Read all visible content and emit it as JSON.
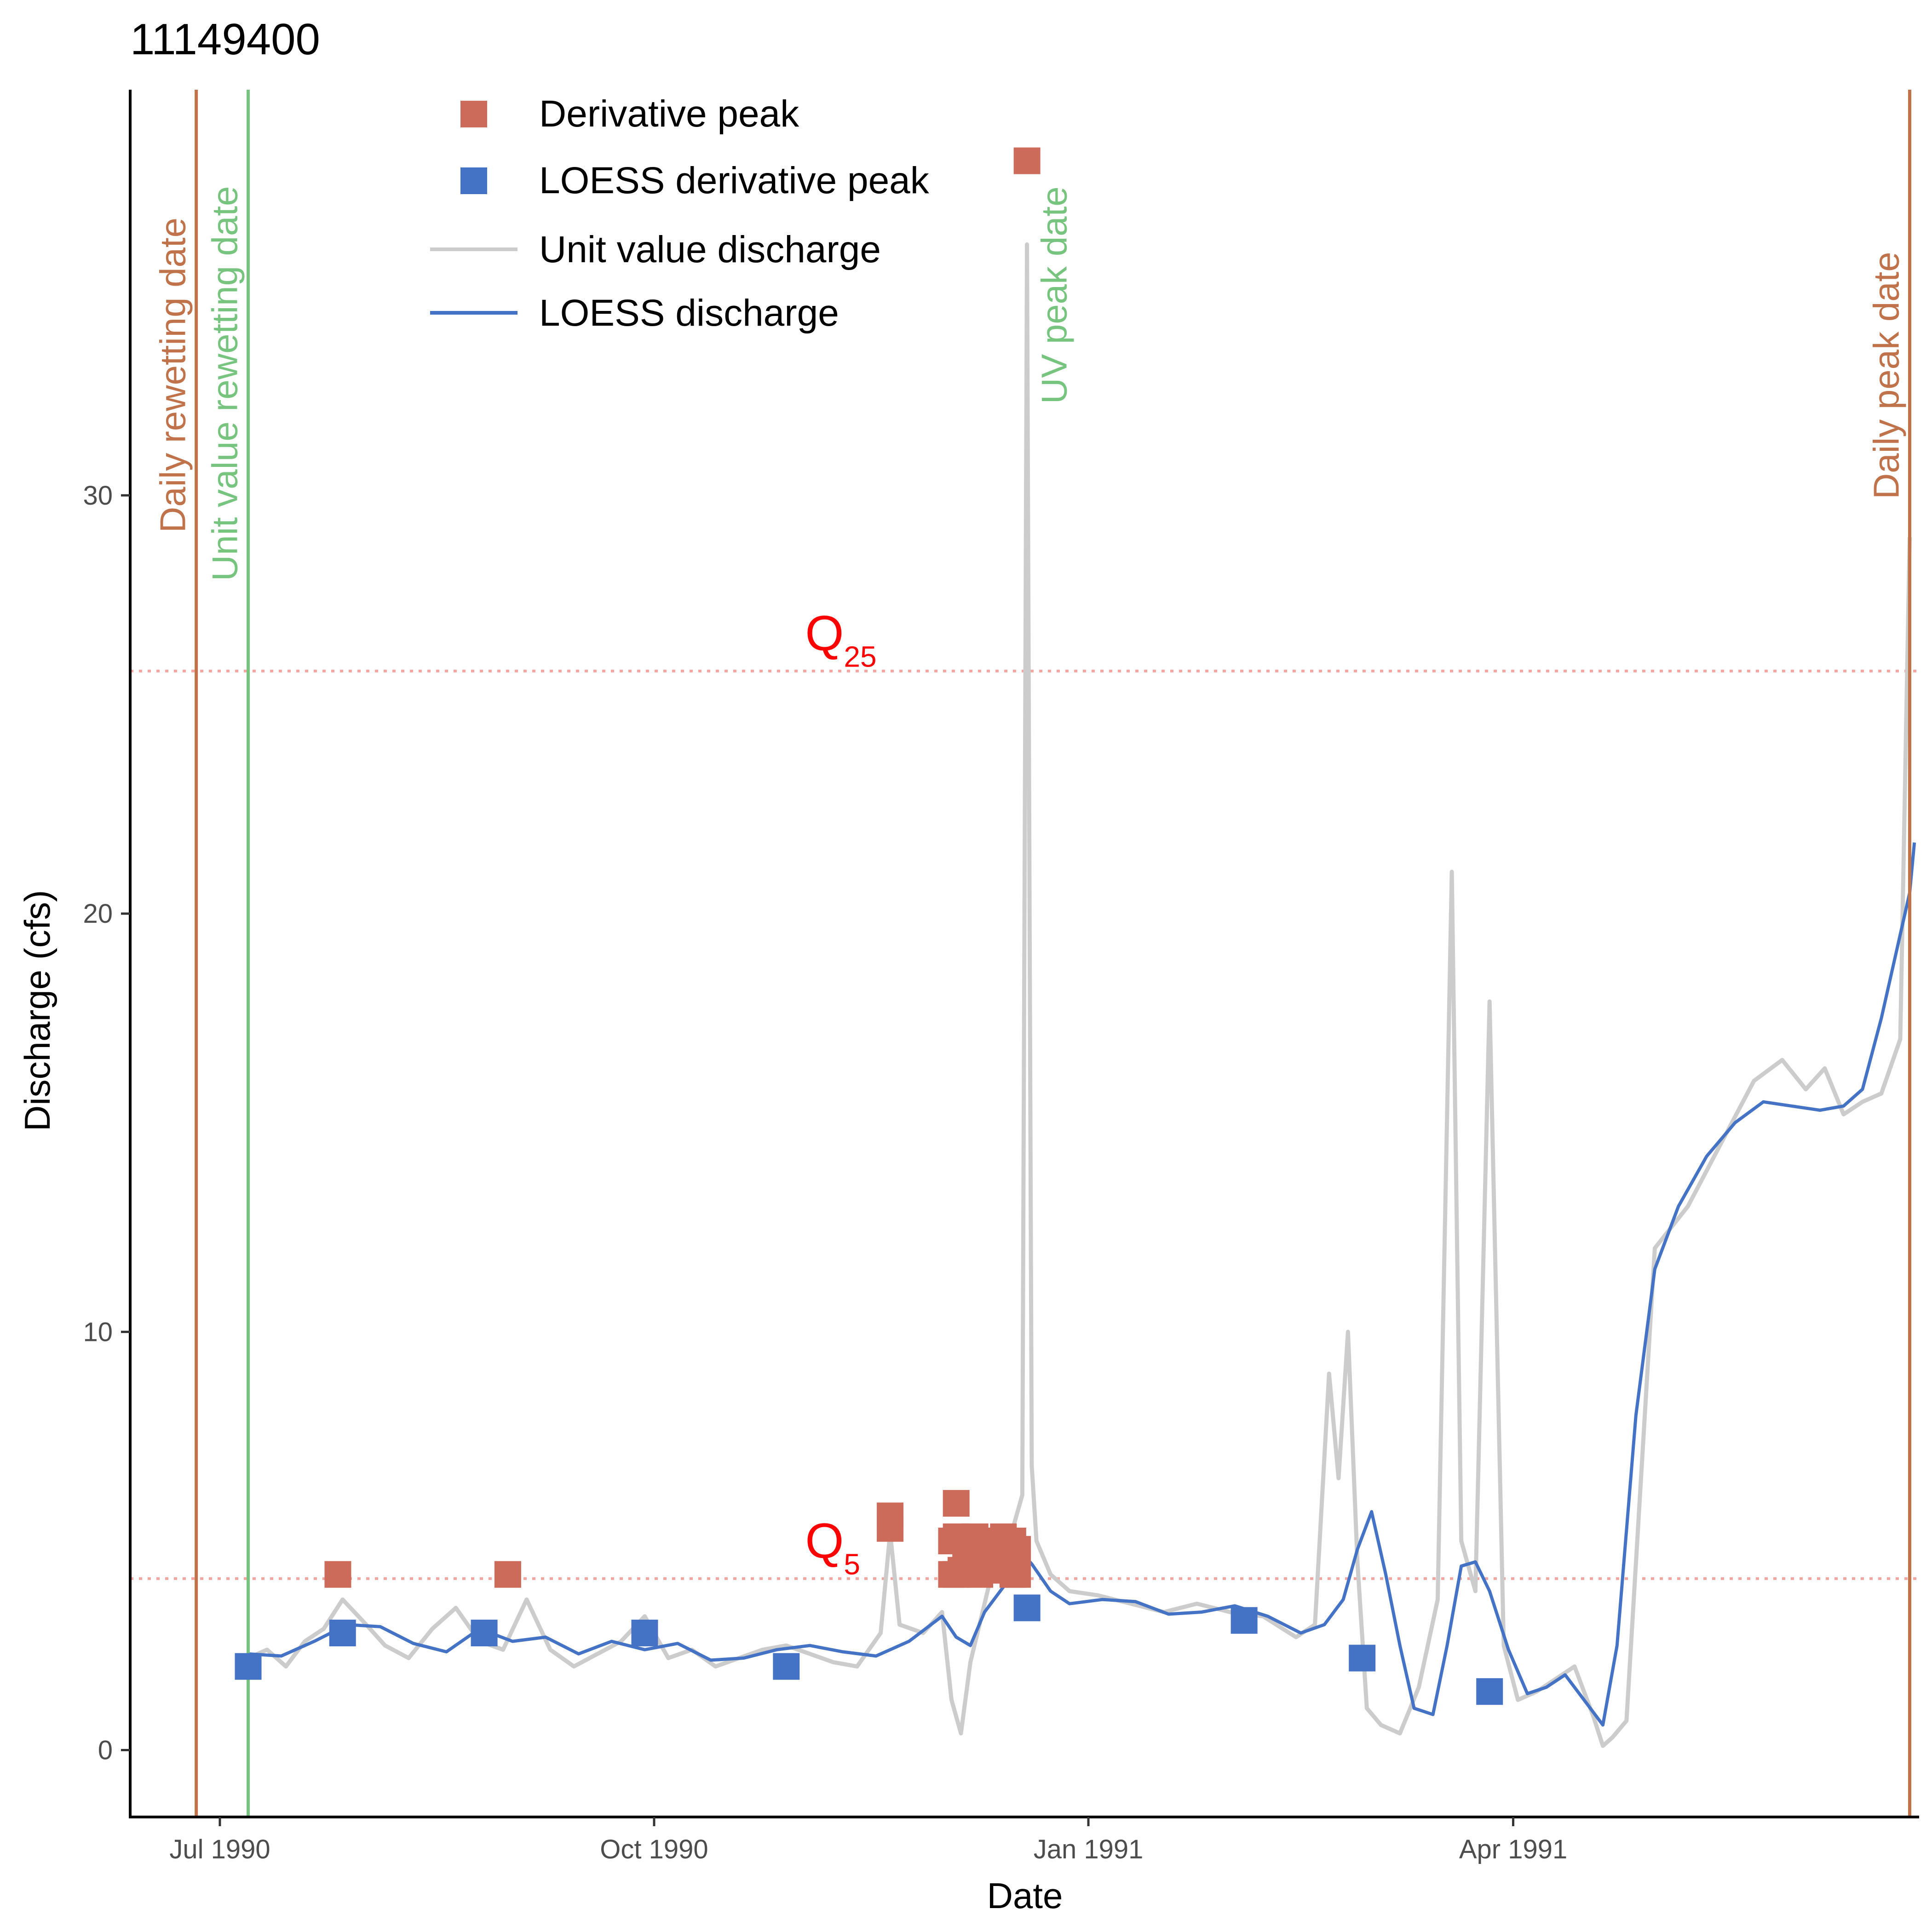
{
  "chart_data": {
    "type": "line",
    "title": "11149400",
    "xlabel": "Date",
    "ylabel": "Discharge (cfs)",
    "xlim": [
      "1990-06-12",
      "1991-06-26"
    ],
    "ylim": [
      -1.6,
      39.7
    ],
    "x_ticks": [
      {
        "date": "1990-07-01",
        "label": "Jul 1990"
      },
      {
        "date": "1990-10-01",
        "label": "Oct 1990"
      },
      {
        "date": "1991-01-01",
        "label": "Jan 1991"
      },
      {
        "date": "1991-04-01",
        "label": "Apr 1991"
      }
    ],
    "y_ticks": [
      0,
      10,
      20,
      30
    ],
    "grid": false,
    "legend": {
      "position": "top-left",
      "items": [
        {
          "label": "Derivative peak",
          "type": "square",
          "color": "#CD6B5A"
        },
        {
          "label": "LOESS derivative peak",
          "type": "square",
          "color": "#4472C4"
        },
        {
          "label": "Unit value discharge",
          "type": "line",
          "color": "#CCCCCC"
        },
        {
          "label": "LOESS discharge",
          "type": "line",
          "color": "#4472C4"
        }
      ]
    },
    "reference_lines": [
      {
        "name": "Q",
        "sub": "25",
        "y": 25.8,
        "label_x": "1990-11-02",
        "label_y": 26.3,
        "color": "#F4A7A1"
      },
      {
        "name": "Q",
        "sub": "5",
        "y": 4.1,
        "label_x": "1990-11-02",
        "label_y": 4.6,
        "color": "#F4A7A1"
      }
    ],
    "vertical_lines": [
      {
        "label": "Daily rewetting date",
        "date": "1990-06-26",
        "color": "#C0734A"
      },
      {
        "label": "Unit value rewetting date",
        "date": "1990-07-07",
        "color": "#77C47F"
      },
      {
        "label": "UV peak date",
        "date": "1990-12-19",
        "color": "#77C47F",
        "line": false
      },
      {
        "label": "Daily peak date",
        "date": "1991-06-24",
        "color": "#C0734A"
      }
    ],
    "series": [
      {
        "name": "Unit value discharge",
        "color": "#CCCCCC",
        "x": [
          "1990-07-07",
          "1990-07-11",
          "1990-07-15",
          "1990-07-19",
          "1990-07-23",
          "1990-07-27",
          "1990-08-01",
          "1990-08-05",
          "1990-08-10",
          "1990-08-15",
          "1990-08-20",
          "1990-08-25",
          "1990-08-30",
          "1990-09-04",
          "1990-09-09",
          "1990-09-14",
          "1990-09-19",
          "1990-09-24",
          "1990-09-29",
          "1990-10-04",
          "1990-10-09",
          "1990-10-14",
          "1990-10-19",
          "1990-10-24",
          "1990-10-29",
          "1990-11-03",
          "1990-11-08",
          "1990-11-13",
          "1990-11-18",
          "1990-11-20",
          "1990-11-22",
          "1990-11-27",
          "1990-12-01",
          "1990-12-03",
          "1990-12-05",
          "1990-12-07",
          "1990-12-10",
          "1990-12-13",
          "1990-12-16",
          "1990-12-18",
          "1990-12-19",
          "1990-12-20",
          "1990-12-21",
          "1990-12-24",
          "1990-12-28",
          "1991-01-03",
          "1991-01-10",
          "1991-01-17",
          "1991-01-24",
          "1991-01-31",
          "1991-02-07",
          "1991-02-14",
          "1991-02-18",
          "1991-02-21",
          "1991-02-23",
          "1991-02-25",
          "1991-02-27",
          "1991-03-01",
          "1991-03-04",
          "1991-03-08",
          "1991-03-12",
          "1991-03-16",
          "1991-03-19",
          "1991-03-21",
          "1991-03-24",
          "1991-03-27",
          "1991-03-30",
          "1991-04-02",
          "1991-04-06",
          "1991-04-10",
          "1991-04-14",
          "1991-04-18",
          "1991-04-20",
          "1991-04-22",
          "1991-04-25",
          "1991-05-01",
          "1991-05-08",
          "1991-05-15",
          "1991-05-22",
          "1991-05-28",
          "1991-06-02",
          "1991-06-06",
          "1991-06-10",
          "1991-06-14",
          "1991-06-18",
          "1991-06-22",
          "1991-06-23",
          "1991-06-24"
        ],
        "y": [
          2.2,
          2.4,
          2.0,
          2.6,
          2.9,
          3.6,
          3.0,
          2.5,
          2.2,
          2.9,
          3.4,
          2.6,
          2.4,
          3.6,
          2.4,
          2.0,
          2.3,
          2.6,
          3.2,
          2.2,
          2.4,
          2.0,
          2.2,
          2.4,
          2.5,
          2.3,
          2.1,
          2.0,
          2.8,
          5.2,
          3.0,
          2.8,
          3.3,
          1.2,
          0.4,
          2.1,
          3.5,
          4.9,
          5.3,
          6.1,
          36.0,
          6.8,
          5.0,
          4.2,
          3.8,
          3.7,
          3.5,
          3.3,
          3.5,
          3.3,
          3.2,
          2.7,
          3.0,
          9.0,
          6.5,
          10.0,
          4.5,
          1.0,
          0.6,
          0.4,
          1.5,
          3.6,
          21.0,
          5.0,
          3.8,
          17.9,
          2.5,
          1.2,
          1.4,
          1.7,
          2.0,
          0.8,
          0.1,
          0.3,
          0.7,
          12.0,
          13.0,
          14.5,
          16.0,
          16.5,
          15.8,
          16.3,
          15.2,
          15.5,
          15.7,
          17.0,
          23.0,
          29.0
        ]
      },
      {
        "name": "LOESS discharge",
        "color": "#4472C4",
        "x": [
          "1990-07-07",
          "1990-07-14",
          "1990-07-21",
          "1990-07-28",
          "1990-08-04",
          "1990-08-11",
          "1990-08-18",
          "1990-08-25",
          "1990-09-01",
          "1990-09-08",
          "1990-09-15",
          "1990-09-22",
          "1990-09-29",
          "1990-10-06",
          "1990-10-13",
          "1990-10-20",
          "1990-10-27",
          "1990-11-03",
          "1990-11-10",
          "1990-11-17",
          "1990-11-24",
          "1990-12-01",
          "1990-12-04",
          "1990-12-07",
          "1990-12-10",
          "1990-12-14",
          "1990-12-18",
          "1990-12-20",
          "1990-12-24",
          "1990-12-28",
          "1991-01-04",
          "1991-01-11",
          "1991-01-18",
          "1991-01-25",
          "1991-02-01",
          "1991-02-08",
          "1991-02-15",
          "1991-02-20",
          "1991-02-24",
          "1991-02-27",
          "1991-03-02",
          "1991-03-05",
          "1991-03-08",
          "1991-03-11",
          "1991-03-15",
          "1991-03-18",
          "1991-03-21",
          "1991-03-24",
          "1991-03-27",
          "1991-03-31",
          "1991-04-04",
          "1991-04-08",
          "1991-04-12",
          "1991-04-16",
          "1991-04-20",
          "1991-04-23",
          "1991-04-27",
          "1991-05-01",
          "1991-05-06",
          "1991-05-12",
          "1991-05-18",
          "1991-05-24",
          "1991-05-30",
          "1991-06-05",
          "1991-06-10",
          "1991-06-14",
          "1991-06-18",
          "1991-06-21",
          "1991-06-24",
          "1991-06-25"
        ],
        "y": [
          2.3,
          2.25,
          2.6,
          3.0,
          2.95,
          2.55,
          2.35,
          2.9,
          2.6,
          2.7,
          2.3,
          2.6,
          2.4,
          2.55,
          2.15,
          2.2,
          2.4,
          2.5,
          2.35,
          2.25,
          2.6,
          3.2,
          2.7,
          2.5,
          3.3,
          3.9,
          4.7,
          4.45,
          3.8,
          3.5,
          3.6,
          3.55,
          3.25,
          3.3,
          3.45,
          3.2,
          2.8,
          3.0,
          3.6,
          4.8,
          5.7,
          4.2,
          2.5,
          1.0,
          0.85,
          2.5,
          4.4,
          4.5,
          3.8,
          2.4,
          1.35,
          1.5,
          1.8,
          1.2,
          0.6,
          2.5,
          8.0,
          11.5,
          13.0,
          14.2,
          15.0,
          15.5,
          15.4,
          15.3,
          15.4,
          15.8,
          17.5,
          19.0,
          20.5,
          21.7
        ]
      },
      {
        "name": "Derivative peak",
        "type": "scatter",
        "color": "#CD6B5A",
        "x": [
          "1990-07-26",
          "1990-08-31",
          "1990-11-20",
          "1990-12-03",
          "1990-12-04",
          "1990-12-05",
          "1990-12-06",
          "1990-12-08",
          "1990-12-09",
          "1990-12-10",
          "1990-12-11",
          "1990-12-12",
          "1990-12-13",
          "1990-12-14",
          "1990-12-15",
          "1990-12-16",
          "1990-12-17",
          "1990-12-03",
          "1990-12-04",
          "1990-12-06",
          "1990-12-07",
          "1990-12-08",
          "1990-12-09",
          "1990-12-11",
          "1990-12-12",
          "1990-12-14",
          "1990-12-15",
          "1990-12-16",
          "1990-12-17",
          "1990-12-19"
        ],
        "y": [
          4.2,
          4.2,
          5.3,
          4.2,
          4.2,
          4.3,
          4.5,
          4.3,
          4.2,
          4.4,
          4.6,
          4.3,
          4.4,
          4.6,
          4.3,
          4.2,
          4.2,
          5.0,
          5.1,
          5.0,
          4.8,
          5.1,
          4.9,
          5.0,
          4.8,
          5.1,
          4.9,
          5.0,
          4.8,
          38.0
        ]
      },
      {
        "name": "Derivative peak (upper)",
        "type": "scatter",
        "color": "#CD6B5A",
        "x": [
          "1990-11-20",
          "1990-12-04"
        ],
        "y": [
          5.6,
          5.9
        ]
      },
      {
        "name": "LOESS derivative peak",
        "type": "scatter",
        "color": "#4472C4",
        "x": [
          "1990-07-07",
          "1990-07-27",
          "1990-08-26",
          "1990-09-29",
          "1990-10-29",
          "1990-12-19",
          "1991-02-03",
          "1991-02-28",
          "1991-03-27"
        ],
        "y": [
          2.0,
          2.8,
          2.8,
          2.8,
          2.0,
          3.4,
          3.1,
          2.2,
          1.4
        ]
      }
    ]
  }
}
